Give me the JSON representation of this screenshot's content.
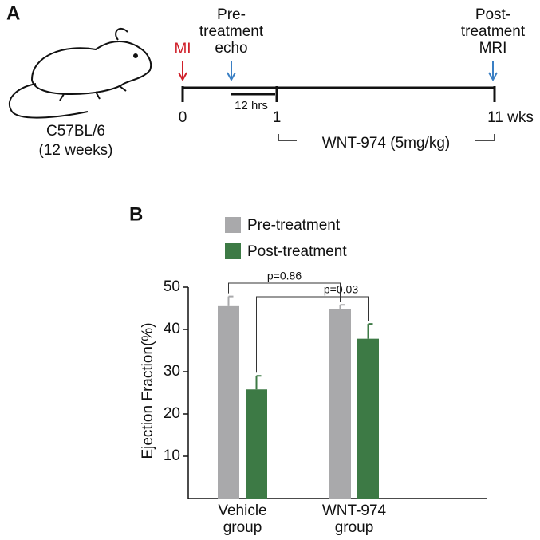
{
  "panel_a": {
    "label": "A",
    "strain": "C57BL/6",
    "age": "(12 weeks)",
    "mi": "MI",
    "pre_label": "Pre-\ntreatment\necho",
    "post_label": "Post-\ntreatment\nMRI",
    "interval": "12 hrs",
    "t0": "0",
    "t1": "1",
    "t11": "11 wks",
    "drug": "WNT-974 (5mg/kg)"
  },
  "chart_data": {
    "type": "bar",
    "panel_label": "B",
    "y_label": "Ejection Fraction(%)",
    "categories": [
      "Vehicle group",
      "WNT-974 group"
    ],
    "series": [
      {
        "name": "Pre-treatment",
        "color": "#a9a9ab",
        "values": [
          45.5,
          44.8
        ],
        "errors": [
          2.3,
          1.0
        ]
      },
      {
        "name": "Post-treatment",
        "color": "#3d7a45",
        "values": [
          25.8,
          37.8
        ],
        "errors": [
          3.2,
          3.5
        ]
      }
    ],
    "ylim": [
      0,
      50
    ],
    "yticks": [
      10,
      20,
      30,
      40,
      50
    ],
    "annotations": [
      "p=0.86",
      "p=0.03"
    ]
  }
}
